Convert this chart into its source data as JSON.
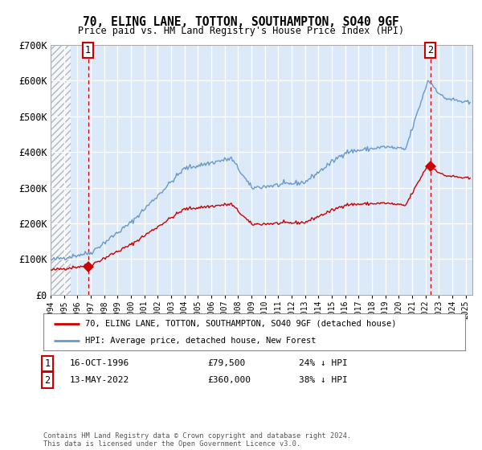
{
  "title": "70, ELING LANE, TOTTON, SOUTHAMPTON, SO40 9GF",
  "subtitle": "Price paid vs. HM Land Registry's House Price Index (HPI)",
  "xlim": [
    1994.0,
    2025.5
  ],
  "ylim": [
    0,
    700000
  ],
  "yticks": [
    0,
    100000,
    200000,
    300000,
    400000,
    500000,
    600000,
    700000
  ],
  "ytick_labels": [
    "£0",
    "£100K",
    "£200K",
    "£300K",
    "£400K",
    "£500K",
    "£600K",
    "£700K"
  ],
  "background_color": "#dce9f8",
  "plot_bg_color": "#dce9f8",
  "hatch_color": "#aaaaaa",
  "grid_color": "#ffffff",
  "red_line_color": "#cc0000",
  "blue_line_color": "#6699cc",
  "marker_color": "#cc0000",
  "dashed_line_color": "#cc0000",
  "point1_x": 1996.79,
  "point1_y": 79500,
  "point1_label": "1",
  "point1_date": "16-OCT-1996",
  "point1_price": "£79,500",
  "point1_hpi": "24% ↓ HPI",
  "point2_x": 2022.36,
  "point2_y": 360000,
  "point2_label": "2",
  "point2_date": "13-MAY-2022",
  "point2_price": "£360,000",
  "point2_hpi": "38% ↓ HPI",
  "legend_line1": "70, ELING LANE, TOTTON, SOUTHAMPTON, SO40 9GF (detached house)",
  "legend_line2": "HPI: Average price, detached house, New Forest",
  "footer": "Contains HM Land Registry data © Crown copyright and database right 2024.\nThis data is licensed under the Open Government Licence v3.0.",
  "xtick_years": [
    1994,
    1995,
    1996,
    1997,
    1998,
    1999,
    2000,
    2001,
    2002,
    2003,
    2004,
    2005,
    2006,
    2007,
    2008,
    2009,
    2010,
    2011,
    2012,
    2013,
    2014,
    2015,
    2016,
    2017,
    2018,
    2019,
    2020,
    2021,
    2022,
    2023,
    2024,
    2025
  ],
  "hatch_end_x": 1995.5
}
